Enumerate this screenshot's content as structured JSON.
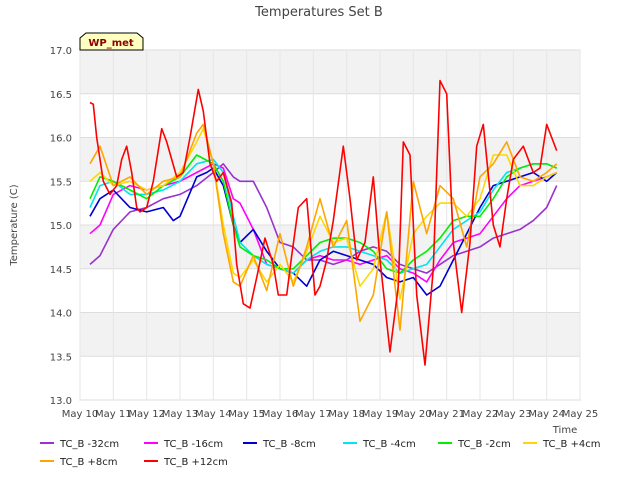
{
  "chart_data": {
    "type": "line",
    "title": "Temperatures Set B",
    "xlabel": "Time",
    "ylabel": "Temperature (C)",
    "xlim": [
      0,
      15
    ],
    "ylim": [
      13.0,
      17.0
    ],
    "x_ticks": [
      0,
      1,
      2,
      3,
      4,
      5,
      6,
      7,
      8,
      9,
      10,
      11,
      12,
      13,
      14,
      15
    ],
    "x_tick_labels": [
      "May 10",
      "May 11",
      "May 12",
      "May 13",
      "May 14",
      "May 15",
      "May 16",
      "May 17",
      "May 18",
      "May 19",
      "May 20",
      "May 21",
      "May 22",
      "May 23",
      "May 24",
      "May 25"
    ],
    "y_ticks": [
      13.0,
      13.5,
      14.0,
      14.5,
      15.0,
      15.5,
      16.0,
      16.5,
      17.0
    ],
    "y_tick_labels": [
      "13.0",
      "13.5",
      "14.0",
      "14.5",
      "15.0",
      "15.5",
      "16.0",
      "16.5",
      "17.0"
    ],
    "grid": true,
    "legend_position": "bottom",
    "annotation": "WP_met",
    "series": [
      {
        "name": "TC_B -32cm",
        "color": "#9a32cd",
        "x": [
          0.3,
          0.6,
          1.0,
          1.5,
          2.0,
          2.5,
          3.0,
          3.5,
          4.0,
          4.3,
          4.6,
          4.8,
          5.2,
          5.6,
          6.0,
          6.4,
          6.8,
          7.2,
          7.6,
          8.0,
          8.4,
          8.8,
          9.2,
          9.6,
          10.0,
          10.4,
          10.8,
          11.2,
          11.6,
          12.0,
          12.4,
          12.8,
          13.2,
          13.6,
          14.0,
          14.3
        ],
        "values": [
          14.55,
          14.65,
          14.95,
          15.15,
          15.2,
          15.3,
          15.35,
          15.45,
          15.6,
          15.7,
          15.55,
          15.5,
          15.5,
          15.2,
          14.8,
          14.75,
          14.6,
          14.6,
          14.55,
          14.6,
          14.7,
          14.75,
          14.7,
          14.55,
          14.5,
          14.45,
          14.55,
          14.65,
          14.7,
          14.75,
          14.85,
          14.9,
          14.95,
          15.05,
          15.2,
          15.45
        ]
      },
      {
        "name": "TC_B -16cm",
        "color": "#ff00ff",
        "x": [
          0.3,
          0.6,
          1.0,
          1.5,
          2.0,
          2.5,
          3.0,
          3.5,
          4.0,
          4.3,
          4.6,
          4.8,
          5.2,
          5.6,
          6.0,
          6.4,
          6.8,
          7.2,
          7.6,
          8.0,
          8.4,
          8.8,
          9.2,
          9.6,
          10.0,
          10.4,
          10.8,
          11.2,
          11.6,
          12.0,
          12.4,
          12.8,
          13.2,
          13.6,
          14.0,
          14.3
        ],
        "values": [
          14.9,
          15.0,
          15.35,
          15.45,
          15.4,
          15.45,
          15.5,
          15.6,
          15.7,
          15.65,
          15.3,
          15.25,
          14.95,
          14.55,
          14.5,
          14.45,
          14.6,
          14.65,
          14.6,
          14.6,
          14.55,
          14.6,
          14.65,
          14.5,
          14.45,
          14.35,
          14.6,
          14.8,
          14.85,
          14.9,
          15.1,
          15.3,
          15.45,
          15.5,
          15.55,
          15.6
        ]
      },
      {
        "name": "TC_B -8cm",
        "color": "#0000cd",
        "x": [
          0.3,
          0.6,
          1.0,
          1.5,
          2.0,
          2.5,
          2.8,
          3.0,
          3.5,
          3.8,
          4.0,
          4.3,
          4.6,
          4.8,
          5.2,
          5.6,
          6.0,
          6.4,
          6.8,
          7.2,
          7.6,
          8.0,
          8.4,
          8.8,
          9.2,
          9.6,
          10.0,
          10.4,
          10.8,
          11.2,
          11.6,
          12.0,
          12.4,
          12.8,
          13.2,
          13.6,
          14.0,
          14.3
        ],
        "values": [
          15.1,
          15.3,
          15.4,
          15.2,
          15.15,
          15.2,
          15.05,
          15.1,
          15.55,
          15.6,
          15.65,
          15.45,
          15.0,
          14.8,
          14.95,
          14.7,
          14.5,
          14.45,
          14.3,
          14.6,
          14.7,
          14.65,
          14.6,
          14.55,
          14.4,
          14.35,
          14.4,
          14.2,
          14.3,
          14.6,
          14.9,
          15.2,
          15.45,
          15.5,
          15.55,
          15.6,
          15.5,
          15.6
        ]
      },
      {
        "name": "TC_B -4cm",
        "color": "#00e5ee",
        "x": [
          0.3,
          0.6,
          1.0,
          1.5,
          2.0,
          2.5,
          3.0,
          3.5,
          4.0,
          4.3,
          4.6,
          4.8,
          5.2,
          5.6,
          6.0,
          6.4,
          6.8,
          7.2,
          7.6,
          8.0,
          8.4,
          8.8,
          9.2,
          9.6,
          10.0,
          10.4,
          10.8,
          11.2,
          11.6,
          12.0,
          12.4,
          12.8,
          13.2,
          13.6,
          14.0,
          14.3
        ],
        "values": [
          15.2,
          15.45,
          15.5,
          15.35,
          15.35,
          15.4,
          15.5,
          15.7,
          15.75,
          15.6,
          15.1,
          14.8,
          14.65,
          14.55,
          14.5,
          14.45,
          14.6,
          14.7,
          14.75,
          14.75,
          14.7,
          14.65,
          14.6,
          14.45,
          14.5,
          14.55,
          14.75,
          14.95,
          15.05,
          15.15,
          15.4,
          15.6,
          15.65,
          15.7,
          15.7,
          15.65
        ]
      },
      {
        "name": "TC_B -2cm",
        "color": "#00ee00",
        "x": [
          0.3,
          0.6,
          1.0,
          1.5,
          2.0,
          2.5,
          3.0,
          3.5,
          4.0,
          4.3,
          4.6,
          4.8,
          5.2,
          5.6,
          6.0,
          6.4,
          6.8,
          7.2,
          7.6,
          8.0,
          8.4,
          8.8,
          9.2,
          9.6,
          10.0,
          10.4,
          10.8,
          11.2,
          11.6,
          12.0,
          12.4,
          12.8,
          13.2,
          13.6,
          14.0,
          14.3
        ],
        "values": [
          15.3,
          15.55,
          15.5,
          15.4,
          15.3,
          15.45,
          15.55,
          15.8,
          15.7,
          15.5,
          15.0,
          14.75,
          14.65,
          14.6,
          14.5,
          14.5,
          14.65,
          14.8,
          14.85,
          14.85,
          14.8,
          14.7,
          14.5,
          14.45,
          14.6,
          14.7,
          14.85,
          15.05,
          15.1,
          15.1,
          15.3,
          15.55,
          15.65,
          15.7,
          15.7,
          15.65
        ]
      },
      {
        "name": "TC_B +4cm",
        "color": "#ffd700",
        "x": [
          0.3,
          0.6,
          1.0,
          1.5,
          2.0,
          2.5,
          3.0,
          3.5,
          3.7,
          4.0,
          4.3,
          4.6,
          4.8,
          5.2,
          5.6,
          6.0,
          6.4,
          6.8,
          7.2,
          7.6,
          8.0,
          8.4,
          8.8,
          9.2,
          9.6,
          10.0,
          10.4,
          10.8,
          11.2,
          11.6,
          12.0,
          12.4,
          12.8,
          13.2,
          13.6,
          14.0,
          14.3
        ],
        "values": [
          15.5,
          15.6,
          15.45,
          15.5,
          15.4,
          15.45,
          15.6,
          15.95,
          16.1,
          15.7,
          15.0,
          14.45,
          14.4,
          14.6,
          14.35,
          14.55,
          14.35,
          14.7,
          15.1,
          14.8,
          14.85,
          14.3,
          14.5,
          15.15,
          14.15,
          14.9,
          15.1,
          15.25,
          15.25,
          15.1,
          15.3,
          15.8,
          15.8,
          15.45,
          15.45,
          15.55,
          15.6
        ]
      },
      {
        "name": "TC_B +8cm",
        "color": "#ffa500",
        "x": [
          0.3,
          0.6,
          1.0,
          1.5,
          2.0,
          2.5,
          3.0,
          3.5,
          3.7,
          4.0,
          4.3,
          4.6,
          4.8,
          5.2,
          5.6,
          6.0,
          6.4,
          6.8,
          7.2,
          7.6,
          8.0,
          8.4,
          8.8,
          9.2,
          9.6,
          10.0,
          10.4,
          10.8,
          11.2,
          11.6,
          12.0,
          12.4,
          12.8,
          13.2,
          13.6,
          14.0,
          14.3
        ],
        "values": [
          15.7,
          15.9,
          15.45,
          15.55,
          15.35,
          15.5,
          15.55,
          16.05,
          16.15,
          15.7,
          14.9,
          14.35,
          14.3,
          14.65,
          14.25,
          14.9,
          14.3,
          14.75,
          15.3,
          14.75,
          15.05,
          13.9,
          14.2,
          15.15,
          13.8,
          15.5,
          14.9,
          15.45,
          15.3,
          14.75,
          15.55,
          15.7,
          15.95,
          15.55,
          15.5,
          15.6,
          15.7
        ]
      },
      {
        "name": "TC_B +12cm",
        "color": "#ff0000",
        "x": [
          0.3,
          0.4,
          0.5,
          0.7,
          0.9,
          1.1,
          1.25,
          1.4,
          1.55,
          1.7,
          1.8,
          2.0,
          2.2,
          2.45,
          2.6,
          2.9,
          3.1,
          3.3,
          3.55,
          3.7,
          3.9,
          4.1,
          4.3,
          4.55,
          4.7,
          4.9,
          5.1,
          5.3,
          5.55,
          5.8,
          5.95,
          6.2,
          6.35,
          6.55,
          6.8,
          7.05,
          7.2,
          7.4,
          7.6,
          7.9,
          8.1,
          8.3,
          8.55,
          8.8,
          9.0,
          9.3,
          9.55,
          9.7,
          9.9,
          10.1,
          10.35,
          10.6,
          10.8,
          11.0,
          11.2,
          11.45,
          11.7,
          11.9,
          12.1,
          12.4,
          12.6,
          12.8,
          13.0,
          13.3,
          13.6,
          13.8,
          14.0,
          14.3
        ],
        "values": [
          16.4,
          16.38,
          16.0,
          15.5,
          15.35,
          15.45,
          15.75,
          15.9,
          15.6,
          15.2,
          15.15,
          15.2,
          15.5,
          16.1,
          15.95,
          15.55,
          15.6,
          16.0,
          16.55,
          16.3,
          15.7,
          15.5,
          15.6,
          15.25,
          14.55,
          14.1,
          14.05,
          14.4,
          14.85,
          14.55,
          14.2,
          14.2,
          14.65,
          15.2,
          15.3,
          14.2,
          14.3,
          14.6,
          15.05,
          15.9,
          15.3,
          14.6,
          14.8,
          15.55,
          14.6,
          13.55,
          14.3,
          15.95,
          15.8,
          14.2,
          13.4,
          14.5,
          16.65,
          16.5,
          14.8,
          14.0,
          14.8,
          15.9,
          16.15,
          15.0,
          14.75,
          15.3,
          15.75,
          15.9,
          15.6,
          15.65,
          16.15,
          15.85
        ]
      }
    ]
  }
}
